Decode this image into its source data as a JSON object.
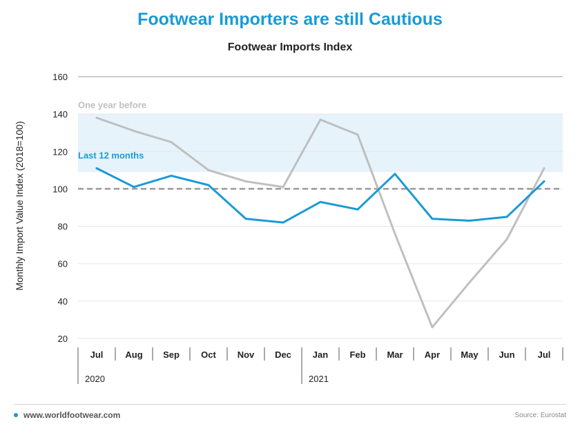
{
  "headline": "Footwear Importers are still Cautious",
  "chart_data": {
    "type": "line",
    "title": "Footwear Imports Index",
    "ylabel": "Monthly Import Value Index  (2018=100)",
    "xlabel": "",
    "categories": [
      "Jul",
      "Aug",
      "Sep",
      "Oct",
      "Nov",
      "Dec",
      "Jan",
      "Feb",
      "Mar",
      "Apr",
      "May",
      "Jun",
      "Jul"
    ],
    "year_labels": [
      {
        "label": "2020",
        "start_index": 0
      },
      {
        "label": "2021",
        "start_index": 6
      }
    ],
    "ylim": [
      20,
      160
    ],
    "yticks": [
      20,
      40,
      60,
      80,
      100,
      120,
      140,
      160
    ],
    "grid": true,
    "reference_line": {
      "value": 100,
      "style": "dashed"
    },
    "highlight_band": {
      "from": 109,
      "to": 140
    },
    "series": [
      {
        "name": "One year before",
        "color": "#bfbfbf",
        "values": [
          138,
          131,
          125,
          110,
          104,
          101,
          137,
          129,
          76,
          26,
          50,
          73,
          111
        ]
      },
      {
        "name": "Last 12 months",
        "color": "#1a9ad6",
        "values": [
          111,
          101,
          107,
          102,
          84,
          82,
          93,
          89,
          108,
          84,
          83,
          85,
          104
        ]
      }
    ]
  },
  "footer": {
    "website": "www.worldfootwear.com",
    "source": "Source: Eurostat"
  },
  "colors": {
    "accent": "#1a9ad6",
    "previous_year": "#bfbfbf",
    "band": "#e6f3fb",
    "reference": "#999999"
  }
}
